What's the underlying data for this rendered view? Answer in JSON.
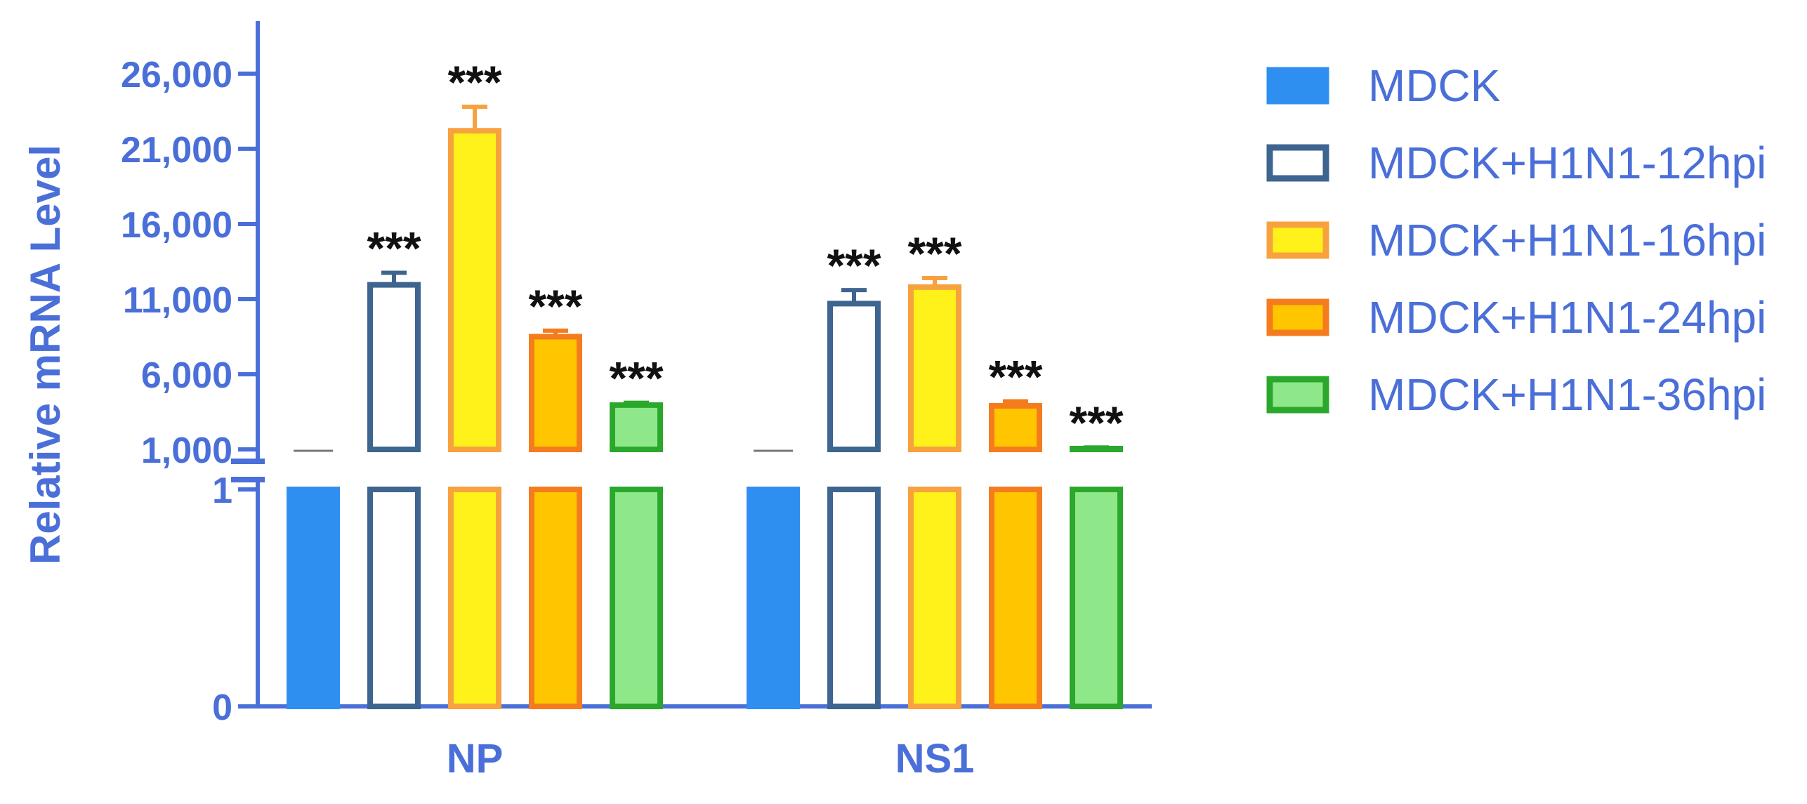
{
  "colors": {
    "axis": "#4A6FD8",
    "star": "#111111"
  },
  "chart_data": {
    "type": "bar",
    "categories": [
      "NP",
      "NS1"
    ],
    "ylabel": "Relative mRNA Level",
    "y_axis_broken": true,
    "lower_segment": {
      "ylim": [
        0,
        1
      ],
      "ticks": [
        {
          "value": 0,
          "label": "0"
        },
        {
          "value": 1,
          "label": "1"
        }
      ]
    },
    "upper_segment": {
      "ylim": [
        1000,
        30000
      ],
      "ticks": [
        {
          "value": 1000,
          "label": "1,000"
        },
        {
          "value": 6000,
          "label": "6,000"
        },
        {
          "value": 11000,
          "label": "11,000"
        },
        {
          "value": 16000,
          "label": "16,000"
        },
        {
          "value": 21000,
          "label": "21,000"
        },
        {
          "value": 26000,
          "label": "26,000"
        }
      ]
    },
    "legend_position": "right",
    "series": [
      {
        "name": "MDCK",
        "fill": "#2E8FF0",
        "stroke": "#2E8FF0",
        "values": [
          1,
          1
        ],
        "errors": [
          0,
          0
        ],
        "labels": [
          "",
          ""
        ]
      },
      {
        "name": "MDCK+H1N1-12hpi",
        "fill": "#FFFFFF",
        "stroke": "#3E6490",
        "values": [
          11950,
          10700
        ],
        "errors": [
          800,
          900
        ],
        "labels": [
          "***",
          "***"
        ]
      },
      {
        "name": "MDCK+H1N1-16hpi",
        "fill": "#FFF21A",
        "stroke": "#F7A23F",
        "values": [
          22200,
          11800
        ],
        "errors": [
          1600,
          600
        ],
        "labels": [
          "***",
          "***"
        ]
      },
      {
        "name": "MDCK+H1N1-24hpi",
        "fill": "#FFC600",
        "stroke": "#F57C1E",
        "values": [
          8500,
          3900
        ],
        "errors": [
          400,
          300
        ],
        "labels": [
          "***",
          "***"
        ]
      },
      {
        "name": "MDCK+H1N1-36hpi",
        "fill": "#8EE88A",
        "stroke": "#2BA82B",
        "values": [
          3950,
          1050
        ],
        "errors": [
          150,
          80
        ],
        "labels": [
          "***",
          "***"
        ]
      }
    ]
  }
}
